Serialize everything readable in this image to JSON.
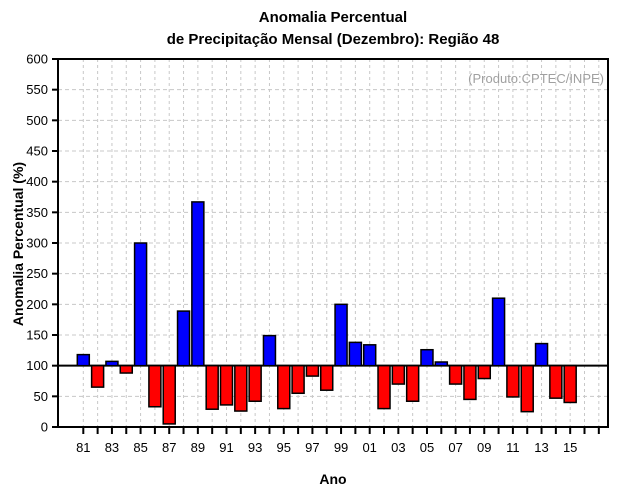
{
  "header": {
    "title_line1": "Anomalia Percentual",
    "title_line2": "de Precipitação Mensal (Dezembro): Região 48"
  },
  "annotation": {
    "text": "(Produto:CPTEC/INPE)",
    "color": "#a0a0a0"
  },
  "axes": {
    "y_label": "Anomalia Percentual (%)",
    "x_label": "Ano",
    "y_ticks": [
      0,
      50,
      100,
      150,
      200,
      250,
      300,
      350,
      400,
      450,
      500,
      550,
      600
    ],
    "x_labeled_years": [
      1981,
      1983,
      1985,
      1987,
      1989,
      1991,
      1993,
      1995,
      1997,
      1999,
      2001,
      2003,
      2005,
      2007,
      2009,
      2011,
      2013,
      2015
    ],
    "x_tick_labels": [
      "81",
      "83",
      "85",
      "87",
      "89",
      "91",
      "93",
      "95",
      "97",
      "99",
      "01",
      "03",
      "05",
      "07",
      "09",
      "11",
      "13",
      "15"
    ],
    "x_tick_year_range": [
      1981,
      2017
    ]
  },
  "chart_data": {
    "type": "bar",
    "title": "Anomalia Percentual de Precipitação Mensal (Dezembro): Região 48",
    "xlabel": "Ano",
    "ylabel": "Anomalia Percentual (%)",
    "ylim": [
      0,
      600
    ],
    "baseline": 100,
    "grid": "dashed gray, horizontal every 50, vertical every year",
    "legend": "none",
    "x": [
      1981,
      1982,
      1983,
      1984,
      1985,
      1986,
      1987,
      1988,
      1989,
      1990,
      1991,
      1992,
      1993,
      1994,
      1995,
      1996,
      1997,
      1998,
      1999,
      2000,
      2001,
      2002,
      2003,
      2004,
      2005,
      2006,
      2007,
      2008,
      2009,
      2010,
      2011,
      2012,
      2013,
      2014,
      2015
    ],
    "values": [
      118,
      65,
      107,
      88,
      300,
      33,
      5,
      189,
      367,
      29,
      36,
      26,
      42,
      149,
      30,
      55,
      83,
      60,
      200,
      138,
      134,
      30,
      70,
      42,
      126,
      106,
      70,
      45,
      79,
      210,
      49,
      25,
      136,
      47,
      40
    ],
    "colors": {
      "above_baseline": "#0000ff",
      "below_baseline": "#ff0000",
      "bar_outline": "#000000",
      "axis": "#000000",
      "grid": "#c8c8c8",
      "background": "#ffffff"
    }
  }
}
